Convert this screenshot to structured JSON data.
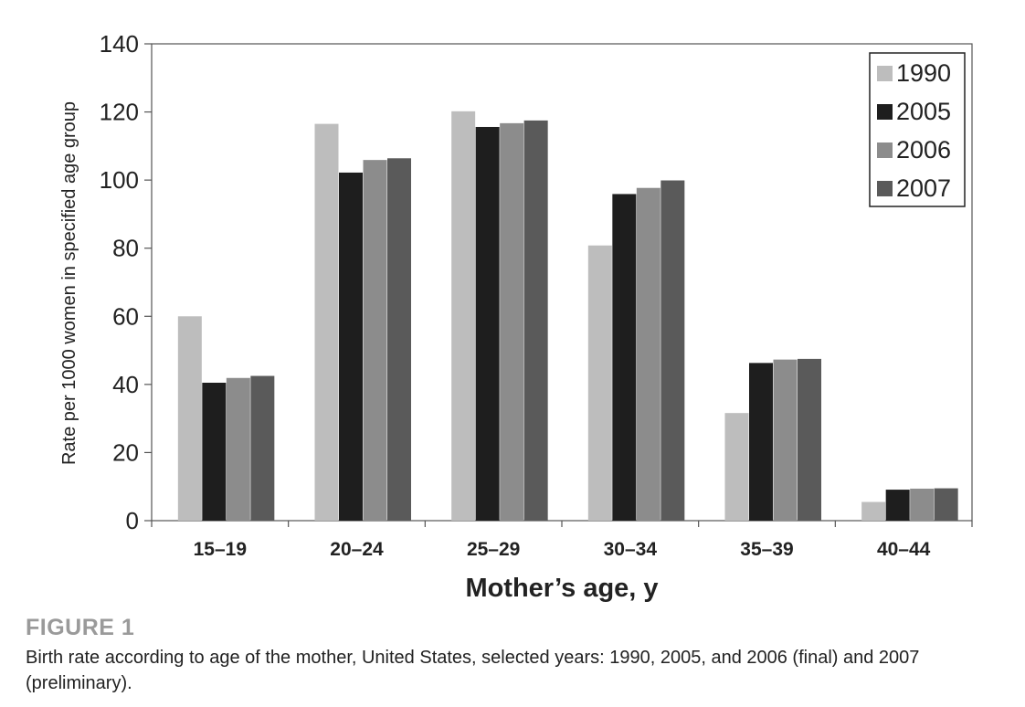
{
  "chart_data": {
    "type": "bar",
    "categories": [
      "15–19",
      "20–24",
      "25–29",
      "30–34",
      "35–39",
      "40–44"
    ],
    "series": [
      {
        "name": "1990",
        "color": "#bdbdbd",
        "values": [
          60,
          116.5,
          120.2,
          80.8,
          31.6,
          5.5
        ]
      },
      {
        "name": "2005",
        "color": "#1e1e1e",
        "values": [
          40.5,
          102.2,
          115.6,
          95.9,
          46.3,
          9.1
        ]
      },
      {
        "name": "2006",
        "color": "#8c8c8c",
        "values": [
          41.9,
          105.9,
          116.7,
          97.7,
          47.3,
          9.4
        ]
      },
      {
        "name": "2007",
        "color": "#5a5a5a",
        "values": [
          42.5,
          106.4,
          117.5,
          99.9,
          47.5,
          9.5
        ]
      }
    ],
    "ylim": [
      0,
      140
    ],
    "yticks": [
      "0",
      "20",
      "40",
      "60",
      "80",
      "100",
      "120",
      "140"
    ],
    "xlabel": "Mother’s age, y",
    "ylabel": "Rate per 1000 women in specified age group",
    "grid": false,
    "legend_position": "top-right"
  },
  "caption": {
    "label": "FIGURE 1",
    "text": "Birth rate according to age of the mother, United States, selected years: 1990, 2005, and 2006 (final) and 2007 (preliminary)."
  }
}
